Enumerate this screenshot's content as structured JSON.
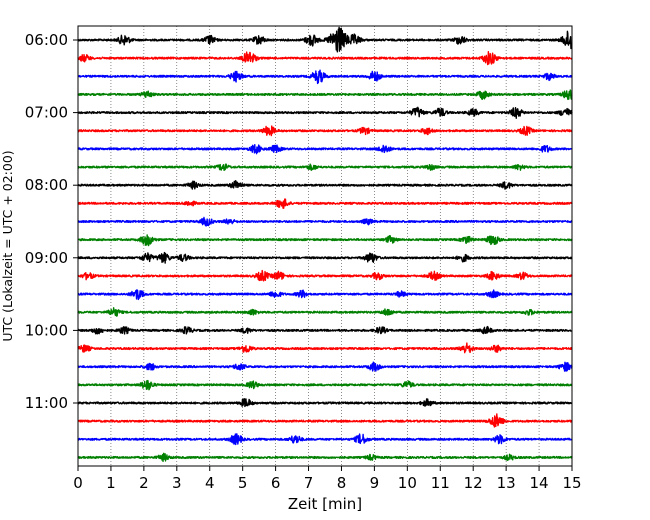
{
  "chart_data": {
    "type": "line",
    "xlabel": "Zeit  [min]",
    "ylabel": "UTC (Lokalzeit = UTC + 02:00)",
    "xlim": [
      0,
      15
    ],
    "x_ticks": [
      0,
      1,
      2,
      3,
      4,
      5,
      6,
      7,
      8,
      9,
      10,
      11,
      12,
      13,
      14,
      15
    ],
    "x_grid": true,
    "y_ticks": [
      "06:00",
      "07:00",
      "08:00",
      "09:00",
      "10:00",
      "11:00"
    ],
    "trace_minutes": 15,
    "trace_colors": [
      "#000000",
      "#ff0000",
      "#0000ff",
      "#008000"
    ],
    "traces": [
      {
        "start": "06:00",
        "color": "#000000",
        "events": [
          [
            1.4,
            0.6
          ],
          [
            4.0,
            0.5
          ],
          [
            5.5,
            0.5
          ],
          [
            7.1,
            0.7
          ],
          [
            7.9,
            1.6
          ],
          [
            8.4,
            0.6
          ],
          [
            11.6,
            0.5
          ],
          [
            14.95,
            1.2
          ]
        ]
      },
      {
        "start": "06:15",
        "color": "#ff0000",
        "events": [
          [
            0.2,
            0.4
          ],
          [
            5.2,
            0.8
          ],
          [
            12.5,
            0.8
          ]
        ]
      },
      {
        "start": "06:30",
        "color": "#0000ff",
        "events": [
          [
            4.8,
            0.6
          ],
          [
            7.3,
            0.8
          ],
          [
            9.0,
            0.6
          ],
          [
            14.3,
            0.4
          ]
        ]
      },
      {
        "start": "06:45",
        "color": "#008000",
        "events": [
          [
            2.1,
            0.4
          ],
          [
            12.3,
            0.5
          ],
          [
            14.9,
            0.6
          ]
        ]
      },
      {
        "start": "07:00",
        "color": "#000000",
        "events": [
          [
            10.3,
            0.6
          ],
          [
            11.0,
            0.5
          ],
          [
            12.0,
            0.4
          ],
          [
            13.3,
            0.6
          ],
          [
            14.8,
            0.5
          ]
        ]
      },
      {
        "start": "07:15",
        "color": "#ff0000",
        "events": [
          [
            5.8,
            0.6
          ],
          [
            8.7,
            0.4
          ],
          [
            10.6,
            0.4
          ],
          [
            13.6,
            0.5
          ]
        ]
      },
      {
        "start": "07:30",
        "color": "#0000ff",
        "events": [
          [
            5.4,
            0.5
          ],
          [
            6.0,
            0.4
          ],
          [
            9.3,
            0.5
          ],
          [
            14.2,
            0.4
          ]
        ]
      },
      {
        "start": "07:45",
        "color": "#008000",
        "events": [
          [
            4.4,
            0.4
          ],
          [
            7.1,
            0.3
          ],
          [
            10.7,
            0.3
          ],
          [
            13.4,
            0.3
          ]
        ]
      },
      {
        "start": "08:00",
        "color": "#000000",
        "events": [
          [
            3.5,
            0.4
          ],
          [
            4.8,
            0.5
          ],
          [
            13.0,
            0.4
          ]
        ]
      },
      {
        "start": "08:15",
        "color": "#ff0000",
        "events": [
          [
            6.2,
            0.6
          ],
          [
            3.4,
            0.3
          ]
        ]
      },
      {
        "start": "08:30",
        "color": "#0000ff",
        "events": [
          [
            3.9,
            0.5
          ],
          [
            4.6,
            0.3
          ],
          [
            8.8,
            0.3
          ]
        ]
      },
      {
        "start": "08:45",
        "color": "#008000",
        "events": [
          [
            2.1,
            0.7
          ],
          [
            9.5,
            0.4
          ],
          [
            11.8,
            0.4
          ],
          [
            12.6,
            0.6
          ]
        ]
      },
      {
        "start": "09:00",
        "color": "#000000",
        "events": [
          [
            2.1,
            0.5
          ],
          [
            2.6,
            0.6
          ],
          [
            3.2,
            0.4
          ],
          [
            8.9,
            0.6
          ],
          [
            11.7,
            0.4
          ]
        ]
      },
      {
        "start": "09:15",
        "color": "#ff0000",
        "events": [
          [
            0.3,
            0.4
          ],
          [
            5.6,
            0.6
          ],
          [
            6.1,
            0.5
          ],
          [
            9.1,
            0.4
          ],
          [
            10.8,
            0.5
          ],
          [
            12.6,
            0.5
          ],
          [
            13.5,
            0.4
          ]
        ]
      },
      {
        "start": "09:30",
        "color": "#0000ff",
        "events": [
          [
            1.8,
            0.6
          ],
          [
            6.0,
            0.4
          ],
          [
            6.8,
            0.4
          ],
          [
            9.8,
            0.3
          ],
          [
            12.6,
            0.4
          ]
        ]
      },
      {
        "start": "09:45",
        "color": "#008000",
        "events": [
          [
            1.1,
            0.5
          ],
          [
            5.3,
            0.3
          ],
          [
            9.4,
            0.4
          ],
          [
            13.7,
            0.3
          ]
        ]
      },
      {
        "start": "10:00",
        "color": "#000000",
        "events": [
          [
            0.6,
            0.4
          ],
          [
            1.4,
            0.4
          ],
          [
            3.3,
            0.4
          ],
          [
            5.1,
            0.3
          ],
          [
            9.2,
            0.4
          ],
          [
            12.4,
            0.4
          ]
        ]
      },
      {
        "start": "10:15",
        "color": "#ff0000",
        "events": [
          [
            0.2,
            0.4
          ],
          [
            5.1,
            0.5
          ],
          [
            11.8,
            0.6
          ],
          [
            12.7,
            0.4
          ]
        ]
      },
      {
        "start": "10:30",
        "color": "#0000ff",
        "events": [
          [
            2.2,
            0.4
          ],
          [
            4.9,
            0.4
          ],
          [
            9.0,
            0.5
          ],
          [
            14.8,
            0.5
          ]
        ]
      },
      {
        "start": "10:45",
        "color": "#008000",
        "events": [
          [
            2.1,
            0.6
          ],
          [
            5.3,
            0.4
          ],
          [
            10.0,
            0.4
          ]
        ]
      },
      {
        "start": "11:00",
        "color": "#000000",
        "events": [
          [
            5.1,
            0.5
          ],
          [
            10.6,
            0.4
          ]
        ]
      },
      {
        "start": "11:15",
        "color": "#ff0000",
        "events": [
          [
            12.7,
            0.8
          ]
        ]
      },
      {
        "start": "11:30",
        "color": "#0000ff",
        "events": [
          [
            4.8,
            0.6
          ],
          [
            6.6,
            0.5
          ],
          [
            8.6,
            0.6
          ],
          [
            12.8,
            0.5
          ]
        ]
      },
      {
        "start": "11:45",
        "color": "#008000",
        "events": [
          [
            2.6,
            0.4
          ],
          [
            8.9,
            0.3
          ],
          [
            13.1,
            0.3
          ]
        ]
      }
    ]
  }
}
